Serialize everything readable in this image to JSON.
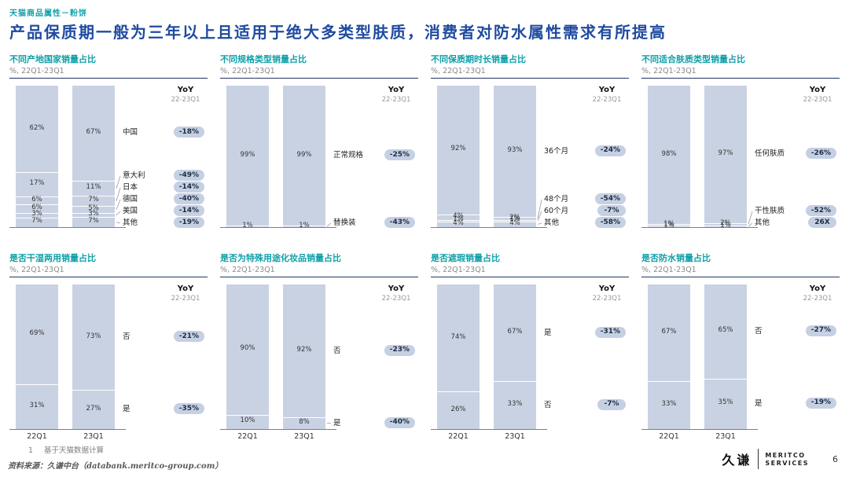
{
  "header": {
    "eyebrow": "天猫商品属性－粉饼",
    "title": "产品保质期一般为三年以上且适用于绝大多类型肤质，消费者对防水属性需求有所提高"
  },
  "yoy_header": {
    "label": "YoY",
    "period": "22-23Q1"
  },
  "colors": {
    "accent_teal": "#0FA0A8",
    "title_blue": "#1F4BA0",
    "bar_fill": "#C9D2E3",
    "badge_bg": "#C5D0E2",
    "divider_navy": "#1F3864"
  },
  "chart_data": [
    {
      "type": "bar",
      "stacked": true,
      "title": "不同产地国家销量占比",
      "subtitle": "%, 22Q1-23Q1",
      "periods": [
        "22Q1",
        "23Q1"
      ],
      "show_x_labels": false,
      "unit": "%",
      "series": [
        {
          "name": "中国",
          "values": [
            62,
            67
          ],
          "yoy": "-18%"
        },
        {
          "name": "意大利",
          "values": [
            17,
            11
          ],
          "yoy": "-49%"
        },
        {
          "name": "日本",
          "values": [
            6,
            7
          ],
          "yoy": "-14%"
        },
        {
          "name": "德国",
          "values": [
            6,
            5
          ],
          "yoy": "-40%"
        },
        {
          "name": "美国",
          "values": [
            3,
            3
          ],
          "yoy": "-14%"
        },
        {
          "name": "其他",
          "values": [
            7,
            7
          ],
          "yoy": "-19%"
        }
      ]
    },
    {
      "type": "bar",
      "stacked": true,
      "title": "不同规格类型销量占比",
      "subtitle": "%, 22Q1-23Q1",
      "periods": [
        "22Q1",
        "23Q1"
      ],
      "show_x_labels": false,
      "unit": "%",
      "series": [
        {
          "name": "正常规格",
          "values": [
            99,
            99
          ],
          "yoy": "-25%"
        },
        {
          "name": "替换装",
          "values": [
            1,
            1
          ],
          "yoy": "-43%"
        }
      ]
    },
    {
      "type": "bar",
      "stacked": true,
      "title": "不同保质期时长销量占比",
      "subtitle": "%, 22Q1-23Q1",
      "periods": [
        "22Q1",
        "23Q1"
      ],
      "show_x_labels": false,
      "unit": "%",
      "series": [
        {
          "name": "36个月",
          "values": [
            92,
            93
          ],
          "yoy": "-24%"
        },
        {
          "name": "48个月",
          "values": [
            4,
            2
          ],
          "yoy": "-54%"
        },
        {
          "name": "60个月",
          "values": [
            1,
            1
          ],
          "yoy": "-7%"
        },
        {
          "name": "其他",
          "values": [
            4,
            4
          ],
          "yoy": "-58%"
        }
      ]
    },
    {
      "type": "bar",
      "stacked": true,
      "title": "不同适合肤质类型销量占比",
      "subtitle": "%, 22Q1-23Q1",
      "periods": [
        "22Q1",
        "23Q1"
      ],
      "show_x_labels": false,
      "unit": "%",
      "series": [
        {
          "name": "任何肤质",
          "values": [
            98,
            97
          ],
          "yoy": "-26%"
        },
        {
          "name": "干性肤质",
          "values": [
            1,
            2
          ],
          "yoy": "-52%"
        },
        {
          "name": "其他",
          "values": [
            1,
            1
          ],
          "yoy": "26X"
        }
      ]
    },
    {
      "type": "bar",
      "stacked": true,
      "title": "是否干湿两用销量占比",
      "subtitle": "%, 22Q1-23Q1",
      "periods": [
        "22Q1",
        "23Q1"
      ],
      "show_x_labels": true,
      "unit": "%",
      "series": [
        {
          "name": "否",
          "values": [
            69,
            73
          ],
          "yoy": "-21%"
        },
        {
          "name": "是",
          "values": [
            31,
            27
          ],
          "yoy": "-35%"
        }
      ]
    },
    {
      "type": "bar",
      "stacked": true,
      "title": "是否为特殊用途化妆品销量占比",
      "subtitle": "%, 22Q1-23Q1",
      "periods": [
        "22Q1",
        "23Q1"
      ],
      "show_x_labels": true,
      "unit": "%",
      "series": [
        {
          "name": "否",
          "values": [
            90,
            92
          ],
          "yoy": "-23%"
        },
        {
          "name": "是",
          "values": [
            10,
            8
          ],
          "yoy": "-40%"
        }
      ]
    },
    {
      "type": "bar",
      "stacked": true,
      "title": "是否遮瑕销量占比",
      "subtitle": "%, 22Q1-23Q1",
      "periods": [
        "22Q1",
        "23Q1"
      ],
      "show_x_labels": true,
      "unit": "%",
      "series": [
        {
          "name": "是",
          "values": [
            74,
            67
          ],
          "yoy": "-31%"
        },
        {
          "name": "否",
          "values": [
            26,
            33
          ],
          "yoy": "-7%"
        }
      ]
    },
    {
      "type": "bar",
      "stacked": true,
      "title": "是否防水销量占比",
      "subtitle": "%, 22Q1-23Q1",
      "periods": [
        "22Q1",
        "23Q1"
      ],
      "show_x_labels": true,
      "unit": "%",
      "series": [
        {
          "name": "否",
          "values": [
            67,
            65
          ],
          "yoy": "-27%"
        },
        {
          "name": "是",
          "values": [
            33,
            35
          ],
          "yoy": "-19%"
        }
      ]
    }
  ],
  "footer": {
    "footnote_marker": "1",
    "footnote": "基于天猫数据计算",
    "source": "资料来源：久谦中台（databank.meritco-group.com）",
    "logo_cn": "久谦",
    "logo_line1": "MERITCO",
    "logo_line2": "SERVICES",
    "page_number": "6"
  }
}
